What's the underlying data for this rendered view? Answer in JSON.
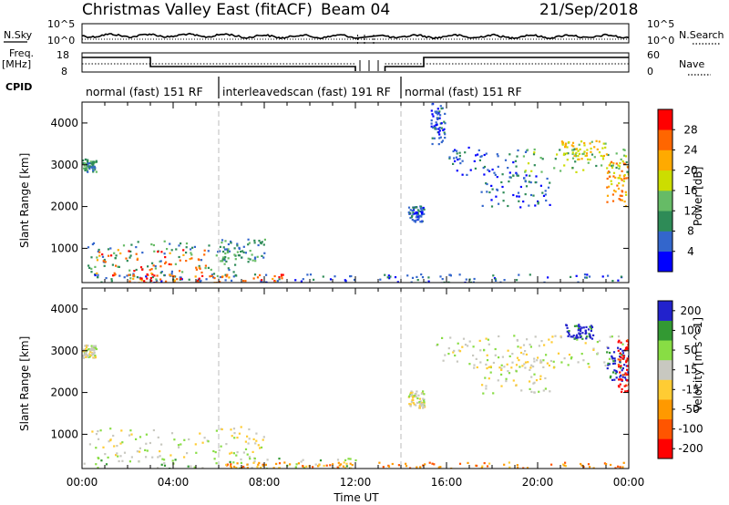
{
  "header": {
    "title": "Christmas Valley East (fitACF)",
    "beam": "Beam 04",
    "date": "21/Sep/2018"
  },
  "status_panel": {
    "nsky_label": "N.Sky",
    "nsearch_label": "N.Search",
    "freq_label_1": "Freq.",
    "freq_label_2": "[MHz]",
    "nave_label": "Nave",
    "cpid_label": "CPID",
    "noise_ticks_left": [
      "10^5",
      "10^0"
    ],
    "noise_ticks_right": [
      "10^5",
      "10^0"
    ],
    "freq_ticks": [
      "18",
      "8"
    ],
    "nave_ticks": [
      "60",
      "0"
    ]
  },
  "cpid_modes": [
    {
      "label": "normal (fast) 151 RF",
      "start": 0,
      "end": 6
    },
    {
      "label": "interleavedscan (fast) 191 RF",
      "start": 6,
      "end": 14
    },
    {
      "label": "normal (fast) 151 RF",
      "start": 14,
      "end": 24
    }
  ],
  "colors": {
    "power_scale": [
      "#0000ff",
      "#3366cc",
      "#2e8b57",
      "#66bb66",
      "#ccdd00",
      "#ffaa00",
      "#ff6600",
      "#ff0000"
    ],
    "velocity_scale": [
      "#ff0000",
      "#ff5500",
      "#ff9900",
      "#ffcc33",
      "#c8c8c0",
      "#88dd44",
      "#339933",
      "#2222cc"
    ]
  },
  "chart_data": [
    {
      "type": "heatmap",
      "title": "Power",
      "xlabel": "",
      "ylabel": "Slant Range [km]",
      "colorbar_label": "Power [dB]",
      "colorbar_ticks": [
        "4",
        "8",
        "12",
        "16",
        "20",
        "24",
        "28"
      ],
      "xlim": [
        0,
        24
      ],
      "ylim": [
        180,
        4500
      ],
      "y_ticks": [
        "1000",
        "2000",
        "3000",
        "4000"
      ],
      "grid": false,
      "scatter_regions": [
        {
          "t0": 0.0,
          "t1": 12.0,
          "r0": 180,
          "r1": 400,
          "level": 1
        },
        {
          "t0": 0.2,
          "t1": 7.0,
          "r0": 250,
          "r1": 1200,
          "level": 2
        },
        {
          "t0": 0.5,
          "t1": 5.5,
          "r0": 350,
          "r1": 1000,
          "level": 6
        },
        {
          "t0": 2.0,
          "t1": 9.0,
          "r0": 180,
          "r1": 400,
          "level": 6
        },
        {
          "t0": 6.0,
          "t1": 8.0,
          "r0": 700,
          "r1": 1250,
          "level": 2
        },
        {
          "t0": 0.0,
          "t1": 0.6,
          "r0": 2850,
          "r1": 3150,
          "level": 2
        },
        {
          "t0": 13.0,
          "t1": 24.0,
          "r0": 180,
          "r1": 400,
          "level": 1
        },
        {
          "t0": 14.3,
          "t1": 15.0,
          "r0": 1650,
          "r1": 2050,
          "level": 1
        },
        {
          "t0": 16.0,
          "t1": 19.5,
          "r0": 2700,
          "r1": 3450,
          "level": 1
        },
        {
          "t0": 17.5,
          "t1": 20.5,
          "r0": 2000,
          "r1": 2800,
          "level": 1
        },
        {
          "t0": 19.0,
          "t1": 24.0,
          "r0": 2800,
          "r1": 3400,
          "level": 3
        },
        {
          "t0": 21.0,
          "t1": 23.0,
          "r0": 3100,
          "r1": 3600,
          "level": 4
        },
        {
          "t0": 23.0,
          "t1": 24.0,
          "r0": 2000,
          "r1": 3100,
          "level": 5
        },
        {
          "t0": 15.3,
          "t1": 15.9,
          "r0": 3500,
          "r1": 4500,
          "level": 1
        }
      ]
    },
    {
      "type": "heatmap",
      "title": "Velocity",
      "xlabel": "Time UT",
      "ylabel": "Slant Range [km]",
      "colorbar_label": "Velocity [m s^-1]",
      "colorbar_ticks": [
        "-200",
        "-100",
        "-50",
        "-15",
        "15",
        "50",
        "100",
        "200"
      ],
      "xlim": [
        0,
        24
      ],
      "ylim": [
        180,
        4500
      ],
      "x_ticks": [
        "00:00",
        "04:00",
        "08:00",
        "12:00",
        "16:00",
        "20:00",
        "00:00"
      ],
      "y_ticks": [
        "1000",
        "2000",
        "3000",
        "4000"
      ],
      "grid": false,
      "scatter_regions": [
        {
          "t0": 0.2,
          "t1": 8.0,
          "r0": 450,
          "r1": 1200,
          "level": 4
        },
        {
          "t0": 0.0,
          "t1": 12.0,
          "r0": 180,
          "r1": 450,
          "level": 5
        },
        {
          "t0": 6.0,
          "t1": 12.0,
          "r0": 180,
          "r1": 350,
          "level": 2
        },
        {
          "t0": 13.0,
          "t1": 24.0,
          "r0": 180,
          "r1": 350,
          "level": 2
        },
        {
          "t0": 0.0,
          "t1": 0.6,
          "r0": 2850,
          "r1": 3150,
          "level": 4
        },
        {
          "t0": 14.3,
          "t1": 15.0,
          "r0": 1650,
          "r1": 2050,
          "level": 4
        },
        {
          "t0": 15.5,
          "t1": 24.0,
          "r0": 2600,
          "r1": 3400,
          "level": 4
        },
        {
          "t0": 17.5,
          "t1": 20.5,
          "r0": 2000,
          "r1": 2800,
          "level": 4
        },
        {
          "t0": 21.2,
          "t1": 22.4,
          "r0": 3300,
          "r1": 3650,
          "level": 7
        },
        {
          "t0": 23.0,
          "t1": 24.0,
          "r0": 2300,
          "r1": 3100,
          "level": 7
        },
        {
          "t0": 23.5,
          "t1": 24.0,
          "r0": 2000,
          "r1": 3300,
          "level": 0
        }
      ]
    }
  ]
}
